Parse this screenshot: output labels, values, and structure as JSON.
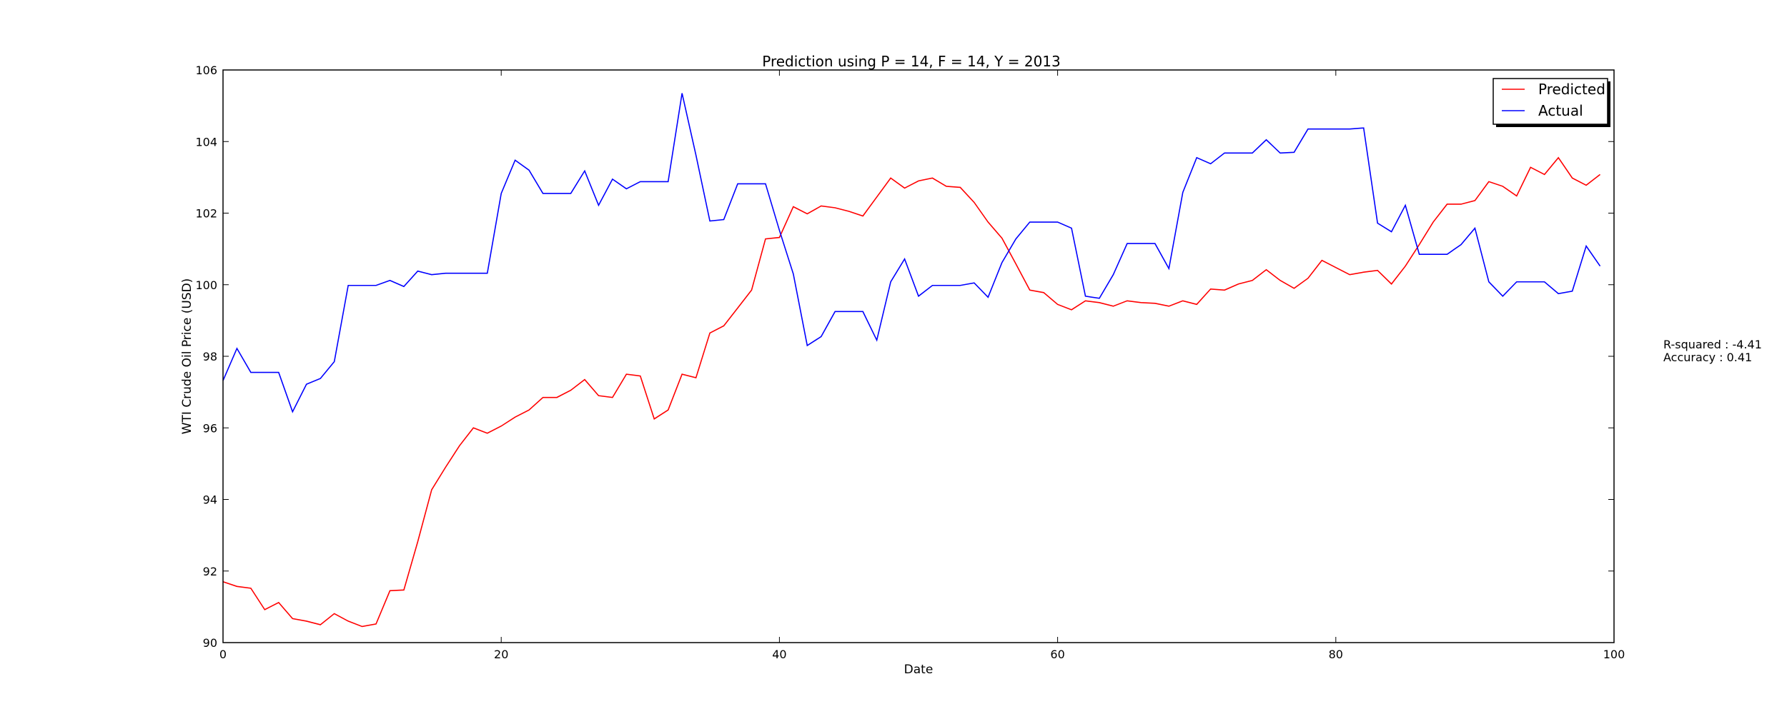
{
  "chart_data": {
    "type": "line",
    "title": "Prediction using P = 14, F = 14, Y = 2013",
    "xlabel": "Date",
    "ylabel": "WTI Crude Oil Price (USD)",
    "xlim": [
      0,
      100
    ],
    "ylim": [
      90,
      106
    ],
    "xticks": [
      0,
      20,
      40,
      60,
      80,
      100
    ],
    "yticks": [
      90,
      92,
      94,
      96,
      98,
      100,
      102,
      104,
      106
    ],
    "grid": false,
    "legend": "top-right",
    "x": [
      0,
      1,
      2,
      3,
      4,
      5,
      6,
      7,
      8,
      9,
      10,
      11,
      12,
      13,
      14,
      15,
      16,
      17,
      18,
      19,
      20,
      21,
      22,
      23,
      24,
      25,
      26,
      27,
      28,
      29,
      30,
      31,
      32,
      33,
      34,
      35,
      36,
      37,
      38,
      39,
      40,
      41,
      42,
      43,
      44,
      45,
      46,
      47,
      48,
      49,
      50,
      51,
      52,
      53,
      54,
      55,
      56,
      57,
      58,
      59,
      60,
      61,
      62,
      63,
      64,
      65,
      66,
      67,
      68,
      69,
      70,
      71,
      72,
      73,
      74,
      75,
      76,
      77,
      78,
      79,
      80,
      81,
      82,
      83,
      84,
      85,
      86,
      87,
      88,
      89,
      90,
      91,
      92,
      93,
      94,
      95,
      96,
      97,
      98,
      99
    ],
    "series": [
      {
        "name": "Predicted",
        "color": "#ff0000",
        "values": [
          91.7,
          91.57,
          91.52,
          90.92,
          91.12,
          90.67,
          90.6,
          90.5,
          90.81,
          90.6,
          90.45,
          90.52,
          91.45,
          91.47,
          92.82,
          94.27,
          94.9,
          95.5,
          96.0,
          95.85,
          96.05,
          96.3,
          96.5,
          96.85,
          96.85,
          97.05,
          97.35,
          96.9,
          96.85,
          97.5,
          97.45,
          96.25,
          96.5,
          97.5,
          97.4,
          98.65,
          98.85,
          99.35,
          99.85,
          101.28,
          101.32,
          102.18,
          101.98,
          102.2,
          102.15,
          102.05,
          101.92,
          102.45,
          102.98,
          102.7,
          102.9,
          102.98,
          102.75,
          102.72,
          102.3,
          101.75,
          101.3,
          100.58,
          99.85,
          99.78,
          99.45,
          99.3,
          99.55,
          99.5,
          99.4,
          99.55,
          99.5,
          99.48,
          99.4,
          99.55,
          99.45,
          99.88,
          99.85,
          100.02,
          100.12,
          100.42,
          100.12,
          99.9,
          100.18,
          100.68,
          100.48,
          100.28,
          100.35,
          100.4,
          100.02,
          100.52,
          101.12,
          101.75,
          102.25,
          102.25,
          102.35,
          102.88,
          102.75,
          102.48,
          103.28,
          103.08,
          103.55,
          102.98,
          102.78,
          103.08
        ]
      },
      {
        "name": "Actual",
        "color": "#0000ff",
        "values": [
          97.32,
          98.22,
          97.55,
          97.55,
          97.55,
          96.45,
          97.22,
          97.38,
          97.85,
          99.98,
          99.98,
          99.98,
          100.12,
          99.95,
          100.38,
          100.28,
          100.32,
          100.32,
          100.32,
          100.32,
          102.55,
          103.48,
          103.2,
          102.55,
          102.55,
          102.55,
          103.18,
          102.22,
          102.95,
          102.68,
          102.88,
          102.88,
          102.88,
          105.35,
          103.62,
          101.78,
          101.82,
          102.82,
          102.82,
          102.82,
          101.52,
          100.3,
          98.3,
          98.55,
          99.25,
          99.25,
          99.25,
          98.45,
          100.08,
          100.72,
          99.68,
          99.98,
          99.98,
          99.98,
          100.05,
          99.65,
          100.62,
          101.28,
          101.75,
          101.75,
          101.75,
          101.58,
          99.68,
          99.62,
          100.28,
          101.15,
          101.15,
          101.15,
          100.45,
          102.58,
          103.55,
          103.38,
          103.68,
          103.68,
          103.68,
          104.05,
          103.68,
          103.7,
          104.35,
          104.35,
          104.35,
          104.35,
          104.38,
          101.72,
          101.48,
          102.22,
          100.85,
          100.85,
          100.85,
          101.12,
          101.58,
          100.08,
          99.68,
          100.08,
          100.08,
          100.08,
          99.75,
          99.82,
          101.08,
          100.52
        ]
      }
    ]
  },
  "stats": {
    "r_squared": "R-squared : -4.41",
    "accuracy": "Accuracy : 0.41"
  }
}
